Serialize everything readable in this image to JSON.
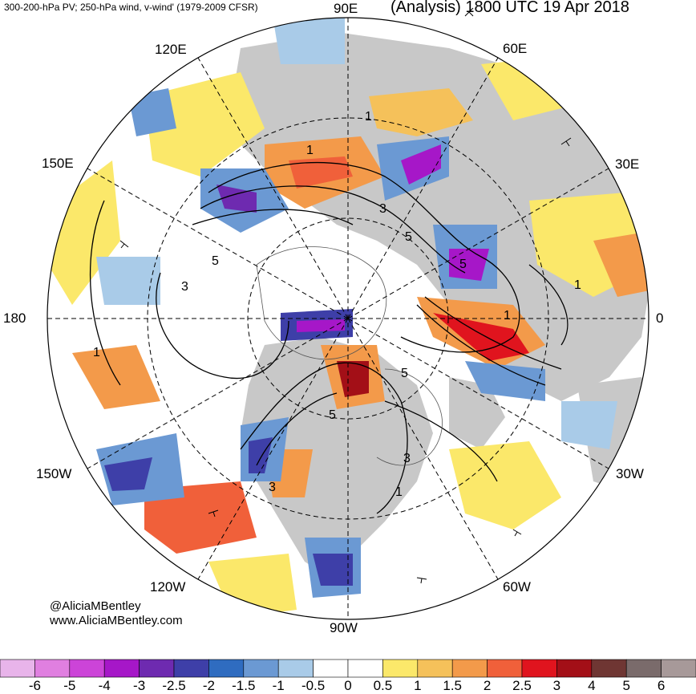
{
  "header": {
    "subtitle": "300-200-hPa PV; 250-hPa wind, v-wind' (1979-2009 CFSR)",
    "title": "(Analysis) 1800 UTC 19 Apr 2018"
  },
  "longitude_labels": {
    "lon_90e": "90E",
    "lon_60e": "60E",
    "lon_120e": "120E",
    "lon_150e": "150E",
    "lon_30e": "30E",
    "lon_180": "180",
    "lon_0": "0",
    "lon_150w": "150W",
    "lon_30w": "30W",
    "lon_120w": "120W",
    "lon_60w": "60W",
    "lon_90w": "90W"
  },
  "contour_labels": [
    "1",
    "1",
    "3",
    "5",
    "3",
    "1",
    "5",
    "5",
    "3",
    "5",
    "1",
    "1",
    "1",
    "3",
    "5"
  ],
  "credits": {
    "handle": "@AliciaMBentley",
    "website": "www.AliciaMBentley.com"
  },
  "colorbar": {
    "labels": [
      "-6",
      "-5",
      "-4",
      "-3",
      "-2.5",
      "-2",
      "-1.5",
      "-1",
      "-0.5",
      "0",
      "0.5",
      "1",
      "1.5",
      "2",
      "2.5",
      "3",
      "4",
      "5",
      "6"
    ],
    "colors": [
      "#e8b4ea",
      "#e07fe0",
      "#cc44d8",
      "#a617c8",
      "#6e2ab0",
      "#3e3fa8",
      "#2f6cc0",
      "#6b99d3",
      "#a9cbe8",
      "#ffffff",
      "#ffffff",
      "#fbe86a",
      "#f5c15a",
      "#f39a4a",
      "#f0603a",
      "#e0141e",
      "#a30f17",
      "#6f3633",
      "#7a6b6b",
      "#a79999"
    ]
  }
}
